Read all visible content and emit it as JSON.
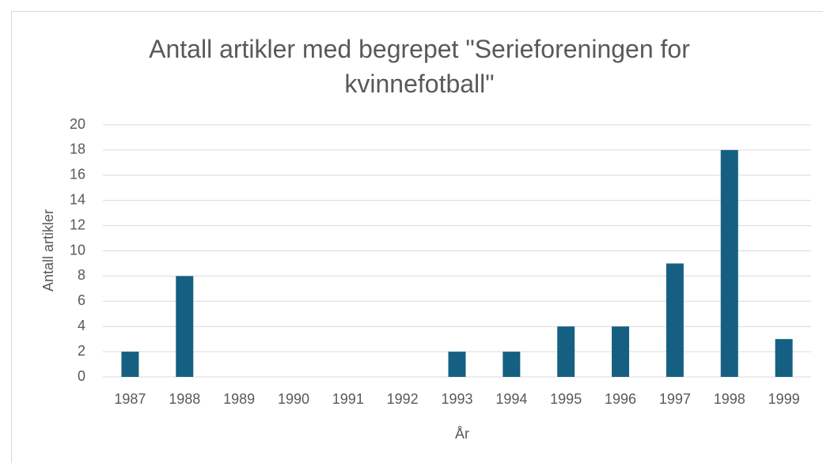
{
  "chart_data": {
    "type": "bar",
    "title": "Antall artikler med begrepet \"Serieforeningen for kvinnefotball\"",
    "x_label": "År",
    "y_label": "Antall artikler",
    "categories": [
      "1987",
      "1988",
      "1989",
      "1990",
      "1991",
      "1992",
      "1993",
      "1994",
      "1995",
      "1996",
      "1997",
      "1998",
      "1999"
    ],
    "values": [
      2,
      8,
      0,
      0,
      0,
      0,
      2,
      2,
      4,
      4,
      9,
      18,
      3
    ],
    "color": "#156082",
    "ylim": [
      0,
      20
    ],
    "yticks": [
      0,
      2,
      4,
      6,
      8,
      10,
      12,
      14,
      16,
      18,
      20
    ],
    "grid": true
  }
}
